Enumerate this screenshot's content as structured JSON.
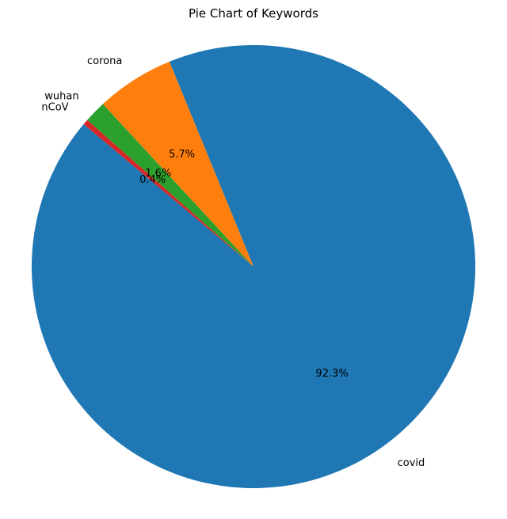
{
  "chart_data": {
    "type": "pie",
    "title": "Pie Chart of Keywords",
    "start_angle_deg": 140,
    "direction": "counterclockwise",
    "slices": [
      {
        "label": "covid",
        "value": 92.3,
        "pct_label": "92.3%",
        "color": "#1f77b4"
      },
      {
        "label": "corona",
        "value": 5.7,
        "pct_label": "5.7%",
        "color": "#ff7f0e"
      },
      {
        "label": "wuhan",
        "value": 1.6,
        "pct_label": "1.6%",
        "color": "#2ca02c"
      },
      {
        "label": "nCoV",
        "value": 0.4,
        "pct_label": "0.4%",
        "color": "#d62728"
      }
    ]
  }
}
